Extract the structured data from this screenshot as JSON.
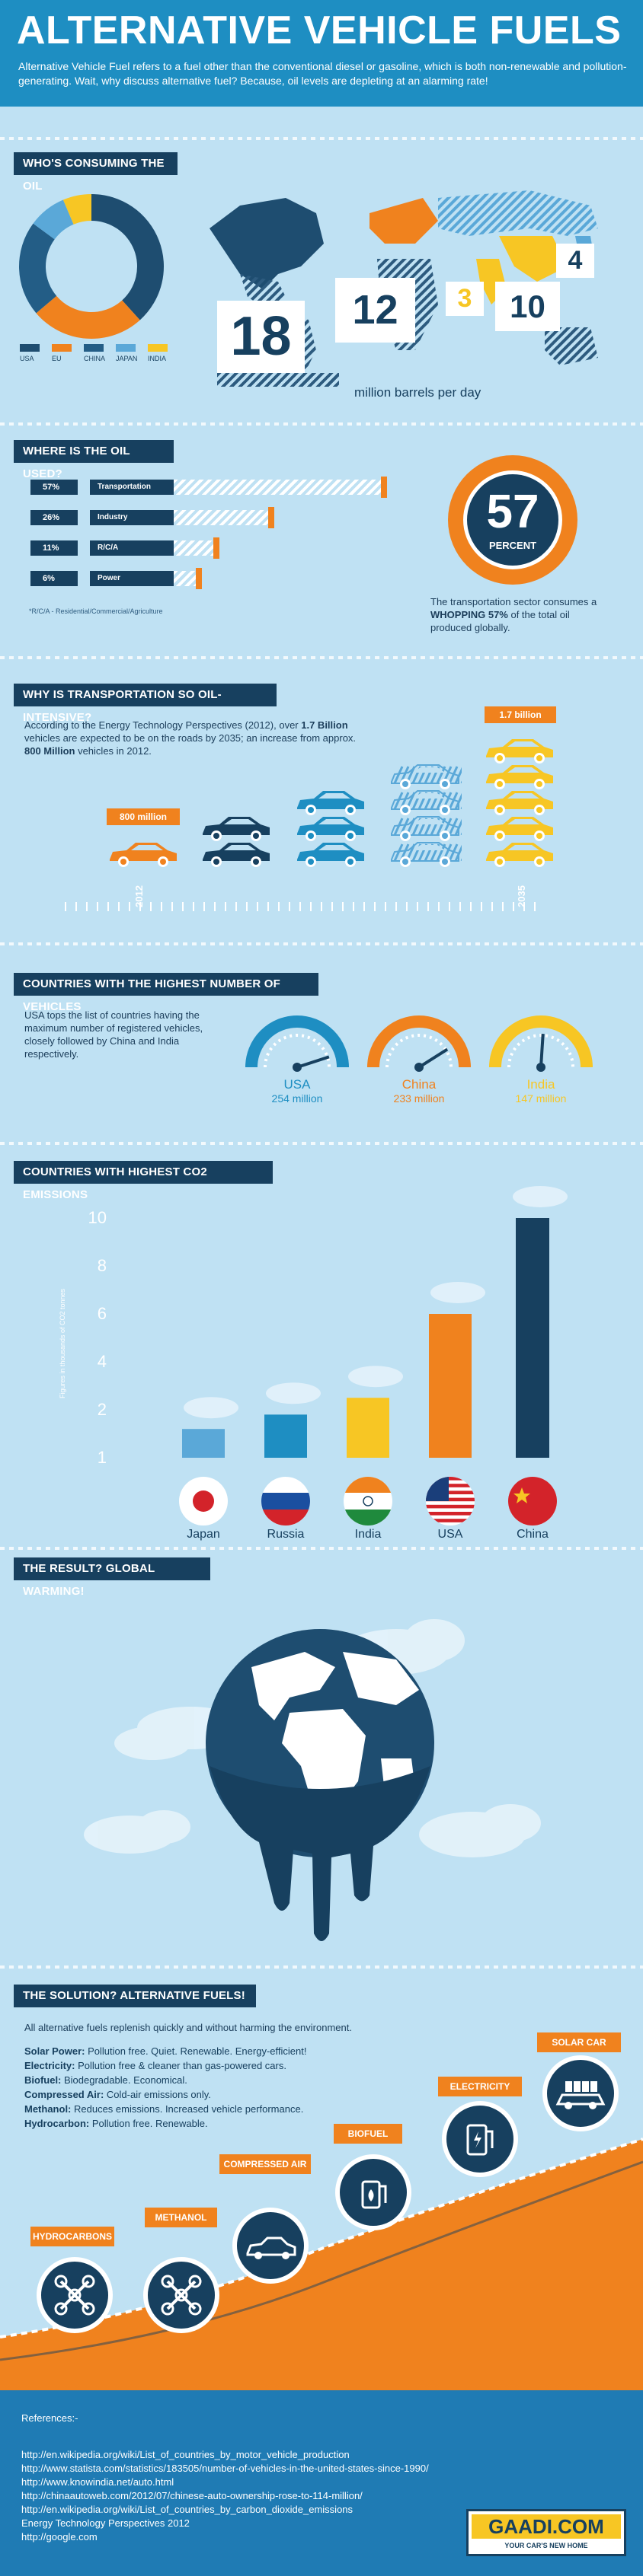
{
  "header": {
    "title": "ALTERNATIVE VEHICLE FUELS",
    "intro": "Alternative Vehicle Fuel refers to a fuel other than the conventional diesel or gasoline, which is both non-renewable and pollution-generating. Wait, why discuss alternative fuel? Because, oil levels are depleting at an alarming rate!"
  },
  "consumers": {
    "heading": "WHO'S CONSUMING THE OIL",
    "legend": [
      {
        "label": "USA",
        "color": "#1e4d70"
      },
      {
        "label": "EU",
        "color": "#f0821e"
      },
      {
        "label": "CHINA",
        "color": "#235d86"
      },
      {
        "label": "JAPAN",
        "color": "#5aa8d8"
      },
      {
        "label": "INDIA",
        "color": "#f7c624"
      }
    ],
    "values": [
      {
        "label": "USA",
        "value": "18"
      },
      {
        "label": "EU",
        "value": "12"
      },
      {
        "label": "INDIA",
        "value": "3"
      },
      {
        "label": "CHINA",
        "value": "10"
      },
      {
        "label": "JAPAN",
        "value": "4"
      }
    ],
    "unit": "million barrels per day"
  },
  "usage": {
    "heading": "WHERE IS THE OIL USED?",
    "rows": [
      {
        "pct": "57%",
        "label": "Transportation",
        "fill": 0.57
      },
      {
        "pct": "26%",
        "label": "Industry",
        "fill": 0.26
      },
      {
        "pct": "11%",
        "label": "R/C/A",
        "fill": 0.11
      },
      {
        "pct": "6%",
        "label": "Power",
        "fill": 0.06
      }
    ],
    "note": "*R/C/A - Residential/Commercial/Agriculture",
    "big_value": "57",
    "big_unit": "PERCENT",
    "big_text_1": "The transportation sector consumes a ",
    "big_text_bold": "WHOPPING 57%",
    "big_text_2": " of the total oil produced globally."
  },
  "transport": {
    "heading": "WHY IS TRANSPORTATION SO OIL-INTENSIVE?",
    "text_1": "According to the Energy Technology Perspectives (2012), over ",
    "text_b1": "1.7 Billion",
    "text_2": " vehicles are expected to be on the roads by 2035; an increase from approx. ",
    "text_b2": "800 Million",
    "text_3": " vehicles in 2012.",
    "start_label": "800 million",
    "end_label": "1.7 billion",
    "start_year": "2012",
    "end_year": "2035"
  },
  "vehicles": {
    "heading": "COUNTRIES WITH THE HIGHEST NUMBER OF VEHICLES",
    "text": "USA tops the list of countries having the maximum number of registered vehicles, closely followed by China and India respectively.",
    "gauges": [
      {
        "country": "USA",
        "value": "254 million",
        "color": "#1e8ec2",
        "level": 0.9
      },
      {
        "country": "China",
        "value": "233 million",
        "color": "#f0821e",
        "level": 0.82
      },
      {
        "country": "India",
        "value": "147 million",
        "color": "#f7c624",
        "level": 0.52
      }
    ]
  },
  "co2": {
    "heading": "COUNTRIES WITH HIGHEST CO2 EMISSIONS",
    "ylabel": "Figures in thousands of CO2 tonnes",
    "ticks": [
      "10",
      "8",
      "6",
      "4",
      "2",
      "1"
    ],
    "bars": [
      {
        "country": "Japan",
        "value": 1.2,
        "color": "#5aa8d8"
      },
      {
        "country": "Russia",
        "value": 1.8,
        "color": "#1e8ec2"
      },
      {
        "country": "India",
        "value": 2.5,
        "color": "#f7c624"
      },
      {
        "country": "USA",
        "value": 6,
        "color": "#f0821e"
      },
      {
        "country": "China",
        "value": 10,
        "color": "#17405f"
      }
    ]
  },
  "warming": {
    "heading": "THE RESULT? GLOBAL WARMING!"
  },
  "solution": {
    "heading": "THE SOLUTION? ALTERNATIVE FUELS!",
    "intro": "All alternative fuels replenish quickly and without harming the environment.",
    "items": [
      {
        "name": "Solar Power:",
        "desc": " Pollution free. Quiet. Renewable. Energy-efficient!"
      },
      {
        "name": "Electricity:",
        "desc": " Pollution free & cleaner than gas-powered cars."
      },
      {
        "name": "Biofuel:",
        "desc": " Biodegradable. Economical."
      },
      {
        "name": "Compressed Air:",
        "desc": " Cold-air emissions only."
      },
      {
        "name": "Methanol:",
        "desc": " Reduces emissions. Increased vehicle performance."
      },
      {
        "name": "Hydrocarbon:",
        "desc": " Pollution free. Renewable."
      }
    ],
    "fuels": [
      {
        "label": "HYDROCARBONS",
        "icon": "molecule-icon"
      },
      {
        "label": "METHANOL",
        "icon": "molecule-icon"
      },
      {
        "label": "COMPRESSED AIR",
        "icon": "car-icon"
      },
      {
        "label": "BIOFUEL",
        "icon": "leaf-pump-icon"
      },
      {
        "label": "ELECTRICITY",
        "icon": "plug-pump-icon"
      },
      {
        "label": "SOLAR CAR",
        "icon": "solar-car-icon"
      }
    ]
  },
  "references": {
    "title": "References:-",
    "links": [
      "http://en.wikipedia.org/wiki/List_of_countries_by_motor_vehicle_production",
      "http://www.statista.com/statistics/183505/number-of-vehicles-in-the-united-states-since-1990/",
      "http://www.knowindia.net/auto.html",
      "http://chinaautoweb.com/2012/07/chinese-auto-ownership-rose-to-114-million/",
      "http://en.wikipedia.org/wiki/List_of_countries_by_carbon_dioxide_emissions",
      "Energy Technology Perspectives 2012",
      "http://google.com"
    ],
    "logo": "GAADI.COM",
    "tagline": "YOUR CAR'S NEW HOME"
  }
}
